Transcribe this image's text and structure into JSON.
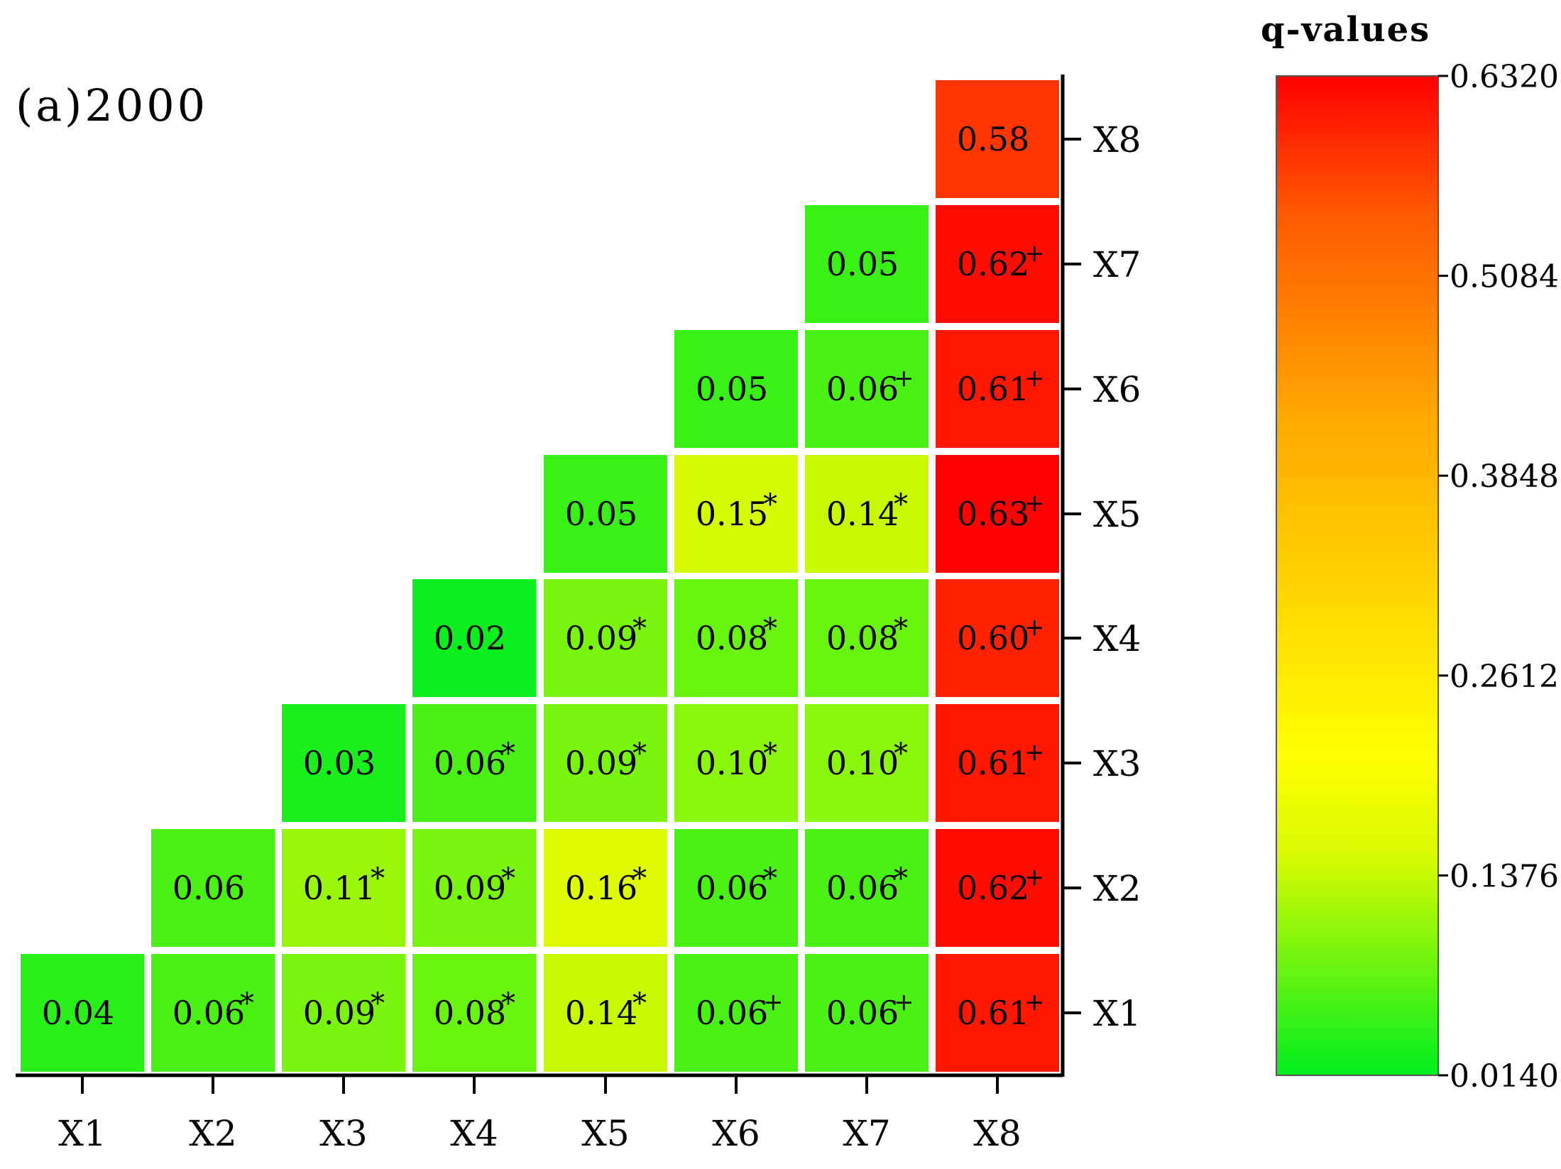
{
  "chart_data": {
    "type": "heatmap",
    "title": "(a)2000",
    "row_labels": [
      "X1",
      "X2",
      "X3",
      "X4",
      "X5",
      "X6",
      "X7",
      "X8"
    ],
    "col_labels": [
      "X1",
      "X2",
      "X3",
      "X4",
      "X5",
      "X6",
      "X7",
      "X8"
    ],
    "cells": [
      {
        "row": "X1",
        "col": "X1",
        "value": 0.04,
        "label": "0.04",
        "mark": ""
      },
      {
        "row": "X1",
        "col": "X2",
        "value": 0.06,
        "label": "0.06",
        "mark": "*"
      },
      {
        "row": "X1",
        "col": "X3",
        "value": 0.09,
        "label": "0.09",
        "mark": "*"
      },
      {
        "row": "X1",
        "col": "X4",
        "value": 0.08,
        "label": "0.08",
        "mark": "*"
      },
      {
        "row": "X1",
        "col": "X5",
        "value": 0.14,
        "label": "0.14",
        "mark": "*"
      },
      {
        "row": "X1",
        "col": "X6",
        "value": 0.06,
        "label": "0.06",
        "mark": "+"
      },
      {
        "row": "X1",
        "col": "X7",
        "value": 0.06,
        "label": "0.06",
        "mark": "+"
      },
      {
        "row": "X1",
        "col": "X8",
        "value": 0.61,
        "label": "0.61",
        "mark": "+"
      },
      {
        "row": "X2",
        "col": "X2",
        "value": 0.06,
        "label": "0.06",
        "mark": ""
      },
      {
        "row": "X2",
        "col": "X3",
        "value": 0.11,
        "label": "0.11",
        "mark": "*"
      },
      {
        "row": "X2",
        "col": "X4",
        "value": 0.09,
        "label": "0.09",
        "mark": "*"
      },
      {
        "row": "X2",
        "col": "X5",
        "value": 0.16,
        "label": "0.16",
        "mark": "*"
      },
      {
        "row": "X2",
        "col": "X6",
        "value": 0.06,
        "label": "0.06",
        "mark": "*"
      },
      {
        "row": "X2",
        "col": "X7",
        "value": 0.06,
        "label": "0.06",
        "mark": "*"
      },
      {
        "row": "X2",
        "col": "X8",
        "value": 0.62,
        "label": "0.62",
        "mark": "+"
      },
      {
        "row": "X3",
        "col": "X3",
        "value": 0.03,
        "label": "0.03",
        "mark": ""
      },
      {
        "row": "X3",
        "col": "X4",
        "value": 0.06,
        "label": "0.06",
        "mark": "*"
      },
      {
        "row": "X3",
        "col": "X5",
        "value": 0.09,
        "label": "0.09",
        "mark": "*"
      },
      {
        "row": "X3",
        "col": "X6",
        "value": 0.1,
        "label": "0.10",
        "mark": "*"
      },
      {
        "row": "X3",
        "col": "X7",
        "value": 0.1,
        "label": "0.10",
        "mark": "*"
      },
      {
        "row": "X3",
        "col": "X8",
        "value": 0.61,
        "label": "0.61",
        "mark": "+"
      },
      {
        "row": "X4",
        "col": "X4",
        "value": 0.02,
        "label": "0.02",
        "mark": ""
      },
      {
        "row": "X4",
        "col": "X5",
        "value": 0.09,
        "label": "0.09",
        "mark": "*"
      },
      {
        "row": "X4",
        "col": "X6",
        "value": 0.08,
        "label": "0.08",
        "mark": "*"
      },
      {
        "row": "X4",
        "col": "X7",
        "value": 0.08,
        "label": "0.08",
        "mark": "*"
      },
      {
        "row": "X4",
        "col": "X8",
        "value": 0.6,
        "label": "0.60",
        "mark": "+"
      },
      {
        "row": "X5",
        "col": "X5",
        "value": 0.05,
        "label": "0.05",
        "mark": ""
      },
      {
        "row": "X5",
        "col": "X6",
        "value": 0.15,
        "label": "0.15",
        "mark": "*"
      },
      {
        "row": "X5",
        "col": "X7",
        "value": 0.14,
        "label": "0.14",
        "mark": "*"
      },
      {
        "row": "X5",
        "col": "X8",
        "value": 0.63,
        "label": "0.63",
        "mark": "+"
      },
      {
        "row": "X6",
        "col": "X6",
        "value": 0.05,
        "label": "0.05",
        "mark": ""
      },
      {
        "row": "X6",
        "col": "X7",
        "value": 0.06,
        "label": "0.06",
        "mark": "+"
      },
      {
        "row": "X6",
        "col": "X8",
        "value": 0.61,
        "label": "0.61",
        "mark": "+"
      },
      {
        "row": "X7",
        "col": "X7",
        "value": 0.05,
        "label": "0.05",
        "mark": ""
      },
      {
        "row": "X7",
        "col": "X8",
        "value": 0.62,
        "label": "0.62",
        "mark": "+"
      },
      {
        "row": "X8",
        "col": "X8",
        "value": 0.58,
        "label": "0.58",
        "mark": ""
      }
    ],
    "colorbar": {
      "title": "q-values",
      "min": 0.014,
      "max": 0.632,
      "ticks": [
        "0.6320",
        "0.5084",
        "0.3848",
        "0.2612",
        "0.1376",
        "0.0140"
      ],
      "colors": [
        "#00ee1e",
        "#ffff00",
        "#ffa800",
        "#ff0000"
      ]
    },
    "grid": false
  }
}
